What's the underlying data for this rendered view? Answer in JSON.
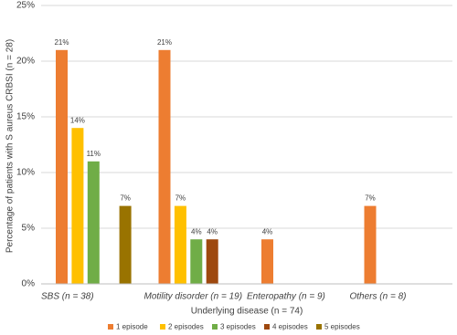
{
  "chart_data": {
    "type": "bar",
    "y_label": "Percentage of patients with S aureus CRBSI (n = 28)",
    "x_label": "Underlying disease (n = 74)",
    "categories": [
      "SBS (n = 38)",
      "Motility disorder (n = 19)",
      "Enteropathy (n = 9)",
      "Others (n = 8)"
    ],
    "series": [
      {
        "name": "1 episode",
        "color": "#ed7d31",
        "values": [
          21,
          21,
          4,
          7
        ],
        "value_labels": [
          "21%",
          "21%",
          "4%",
          "7%"
        ]
      },
      {
        "name": "2 episodes",
        "color": "#ffc000",
        "values": [
          14,
          7,
          null,
          null
        ],
        "value_labels": [
          "14%",
          "7%",
          null,
          null
        ]
      },
      {
        "name": "3 episodes",
        "color": "#70ad47",
        "values": [
          11,
          4,
          null,
          null
        ],
        "value_labels": [
          "11%",
          "4%",
          null,
          null
        ]
      },
      {
        "name": "4 episodes",
        "color": "#9e480e",
        "values": [
          null,
          4,
          null,
          null
        ],
        "value_labels": [
          null,
          "4%",
          null,
          null
        ]
      },
      {
        "name": "5 episodes",
        "color": "#997300",
        "values": [
          7,
          null,
          null,
          null
        ],
        "value_labels": [
          "7%",
          null,
          null,
          null
        ]
      }
    ],
    "ylim": [
      0,
      25
    ],
    "yticks": [
      {
        "value": 0,
        "label": "0%"
      },
      {
        "value": 5,
        "label": "5%"
      },
      {
        "value": 10,
        "label": "10%"
      },
      {
        "value": 15,
        "label": "15%"
      },
      {
        "value": 20,
        "label": "20%"
      },
      {
        "value": 25,
        "label": "25%"
      }
    ],
    "grid": true
  }
}
